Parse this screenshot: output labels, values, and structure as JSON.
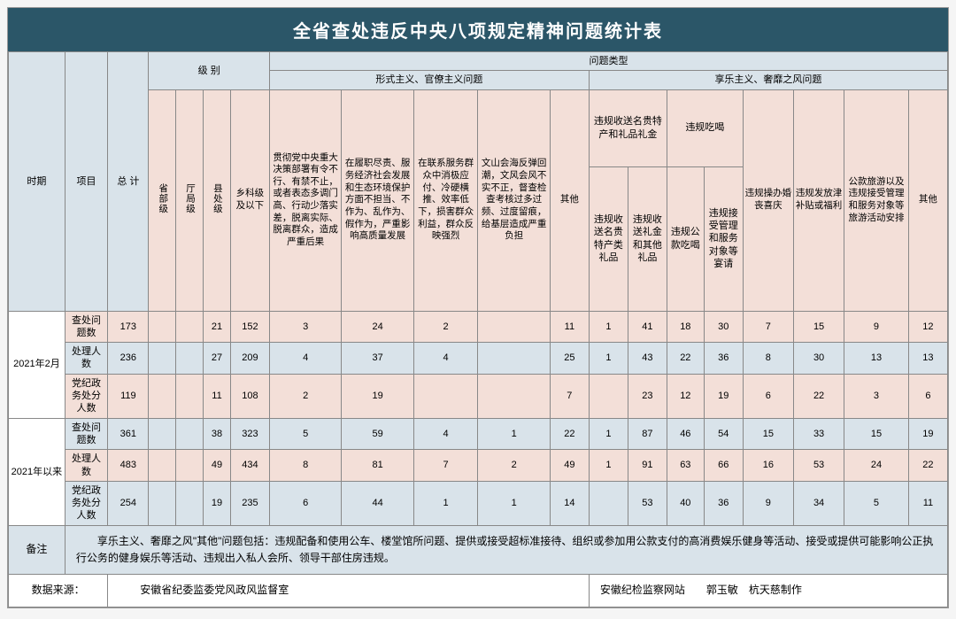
{
  "title": "全省查处违反中央八项规定精神问题统计表",
  "colors": {
    "title_bg": "#2b5668",
    "title_fg": "#ffffff",
    "hdr_blue": "#d9e3ea",
    "hdr_pink": "#f3dfd8",
    "border": "#888888"
  },
  "headers": {
    "period": "时期",
    "item": "项目",
    "total": "总 计",
    "level_group": "级 别",
    "issue_group": "问题类型",
    "formalism_group": "形式主义、官僚主义问题",
    "hedonism_group": "享乐主义、奢靡之风问题",
    "gifts_group": "违规收送名贵特产和礼品礼金",
    "dining_group": "违规吃喝",
    "lvl_prov": "省部级",
    "lvl_dept": "厅局级",
    "lvl_county": "县处级",
    "lvl_township": "乡科级及以下",
    "f1": "贯彻党中央重大决策部署有令不行、有禁不止，或者表态多调门高、行动少落实差，脱离实际、脱离群众，造成严重后果",
    "f2": "在履职尽责、服务经济社会发展和生态环境保护方面不担当、不作为、乱作为、假作为，严重影响高质量发展",
    "f3": "在联系服务群众中消极应付、冷硬横推、效率低下，损害群众利益，群众反映强烈",
    "f4": "文山会海反弹回潮，文风会风不实不正，督查检查考核过多过频、过度留痕，给基层造成严重负担",
    "f_other": "其他",
    "g1": "违规收送名贵特产类礼品",
    "g2": "违规收送礼金和其他礼品",
    "d1": "违规公款吃喝",
    "d2": "违规接受管理和服务对象等宴请",
    "h_wedding": "违规操办婚丧喜庆",
    "h_subsidy": "违规发放津补贴或福利",
    "h_travel": "公款旅游以及违规接受管理和服务对象等旅游活动安排",
    "h_other": "其他"
  },
  "periods": [
    {
      "label": "2021年2月",
      "rows": [
        {
          "item": "查处问题数",
          "style": "pink",
          "vals": [
            "173",
            "",
            "",
            "21",
            "152",
            "3",
            "24",
            "2",
            "",
            "11",
            "1",
            "41",
            "18",
            "30",
            "7",
            "15",
            "9",
            "12"
          ]
        },
        {
          "item": "处理人数",
          "style": "blue",
          "vals": [
            "236",
            "",
            "",
            "27",
            "209",
            "4",
            "37",
            "4",
            "",
            "25",
            "1",
            "43",
            "22",
            "36",
            "8",
            "30",
            "13",
            "13"
          ]
        },
        {
          "item": "党纪政务处分人数",
          "style": "pink",
          "vals": [
            "119",
            "",
            "",
            "11",
            "108",
            "2",
            "19",
            "",
            "",
            "7",
            "",
            "23",
            "12",
            "19",
            "6",
            "22",
            "3",
            "6"
          ]
        }
      ]
    },
    {
      "label": "2021年以来",
      "rows": [
        {
          "item": "查处问题数",
          "style": "blue",
          "vals": [
            "361",
            "",
            "",
            "38",
            "323",
            "5",
            "59",
            "4",
            "1",
            "22",
            "1",
            "87",
            "46",
            "54",
            "15",
            "33",
            "15",
            "19"
          ]
        },
        {
          "item": "处理人数",
          "style": "pink",
          "vals": [
            "483",
            "",
            "",
            "49",
            "434",
            "8",
            "81",
            "7",
            "2",
            "49",
            "1",
            "91",
            "63",
            "66",
            "16",
            "53",
            "24",
            "22"
          ]
        },
        {
          "item": "党纪政务处分人数",
          "style": "blue",
          "vals": [
            "254",
            "",
            "",
            "19",
            "235",
            "6",
            "44",
            "1",
            "1",
            "14",
            "",
            "53",
            "40",
            "36",
            "9",
            "34",
            "5",
            "11"
          ]
        }
      ]
    }
  ],
  "footnote_label": "备注",
  "footnote_text": "　　享乐主义、奢靡之风\"其他\"问题包括：违规配备和使用公车、楼堂馆所问题、提供或接受超标准接待、组织或参加用公款支付的高消费娱乐健身等活动、接受或提供可能影响公正执行公务的健身娱乐等活动、违规出入私人会所、领导干部住房违规。",
  "source_label": "数据来源：",
  "source_text1": "　　安徽省纪委监委党风政风监督室",
  "source_text2": "安徽纪检监察网站　　郭玉敏　杭天慈制作"
}
